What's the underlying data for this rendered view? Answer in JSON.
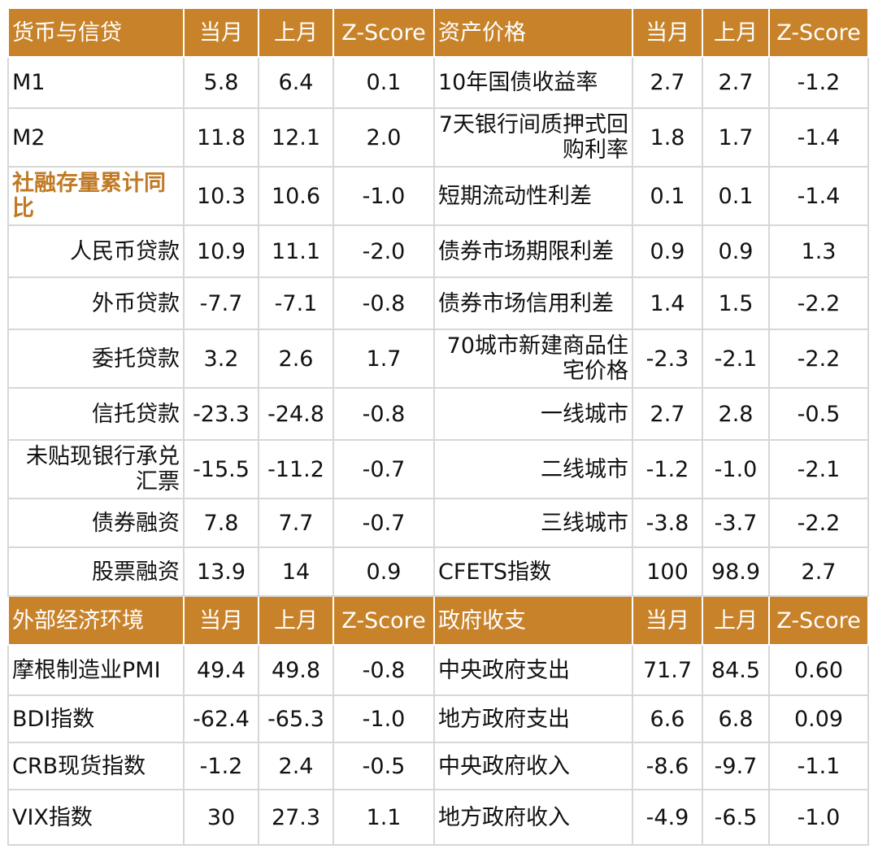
{
  "top": {
    "left_header": [
      "货币与信贷",
      "当月",
      "上月",
      "Z-Score"
    ],
    "right_header": [
      "资产价格",
      "当月",
      "上月",
      "Z-Score"
    ],
    "rows": [
      {
        "l": [
          "M1",
          "5.8",
          "6.4",
          "0.1"
        ],
        "r": [
          "10年国债收益率",
          "2.7",
          "2.7",
          "-1.2"
        ]
      },
      {
        "l": [
          "M2",
          "11.8",
          "12.1",
          "2.0"
        ],
        "r": [
          "7天银行间质押式回购利率",
          "1.8",
          "1.7",
          "-1.4"
        ]
      },
      {
        "l": [
          "社融存量累计同比",
          "10.3",
          "10.6",
          "-1.0"
        ],
        "r": [
          "短期流动性利差",
          "0.1",
          "0.1",
          "-1.4"
        ]
      },
      {
        "l": [
          "人民币贷款",
          "10.9",
          "11.1",
          "-2.0"
        ],
        "r": [
          "债券市场期限利差",
          "0.9",
          "0.9",
          "1.3"
        ]
      },
      {
        "l": [
          "外币贷款",
          "-7.7",
          "-7.1",
          "-0.8"
        ],
        "r": [
          "债券市场信用利差",
          "1.4",
          "1.5",
          "-2.2"
        ]
      },
      {
        "l": [
          "委托贷款",
          "3.2",
          "2.6",
          "1.7"
        ],
        "r": [
          "70城市新建商品住宅价格",
          "-2.3",
          "-2.1",
          "-2.2"
        ]
      },
      {
        "l": [
          "信托贷款",
          "-23.3",
          "-24.8",
          "-0.8"
        ],
        "r": [
          "一线城市",
          "2.7",
          "2.8",
          "-0.5"
        ]
      },
      {
        "l": [
          "未贴现银行承兑汇票",
          "-15.5",
          "-11.2",
          "-0.7"
        ],
        "r": [
          "二线城市",
          "-1.2",
          "-1.0",
          "-2.1"
        ]
      },
      {
        "l": [
          "债券融资",
          "7.8",
          "7.7",
          "-0.7"
        ],
        "r": [
          "三线城市",
          "-3.8",
          "-3.7",
          "-2.2"
        ]
      },
      {
        "l": [
          "股票融资",
          "13.9",
          "14",
          "0.9"
        ],
        "r": [
          "CFETS指数",
          "100",
          "98.9",
          "2.7"
        ]
      }
    ]
  },
  "bottom": {
    "left_header": [
      "外部经济环境",
      "当月",
      "上月",
      "Z-Score"
    ],
    "right_header": [
      "政府收支",
      "当月",
      "上月",
      "Z-Score"
    ],
    "rows": [
      {
        "l": [
          "摩根制造业PMI",
          "49.4",
          "49.8",
          "-0.8"
        ],
        "r": [
          "中央政府支出",
          "71.7",
          "84.5",
          "0.60"
        ]
      },
      {
        "l": [
          "BDI指数",
          "-62.4",
          "-65.3",
          "-1.0"
        ],
        "r": [
          "地方政府支出",
          "6.6",
          "6.8",
          "0.09"
        ]
      },
      {
        "l": [
          "CRB现货指数",
          "-1.2",
          "2.4",
          "-0.5"
        ],
        "r": [
          "中央政府收入",
          "-8.6",
          "-9.7",
          "-1.1"
        ]
      },
      {
        "l": [
          "VIX指数",
          "30",
          "27.3",
          "1.1"
        ],
        "r": [
          "地方政府收入",
          "-4.9",
          "-6.5",
          "-1.0"
        ]
      }
    ]
  },
  "colors": {
    "header_bg": "#c8832a",
    "highlight_text": "#c07a26",
    "grid": "#d7d7d7"
  }
}
